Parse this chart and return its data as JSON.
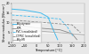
{
  "title": "",
  "xlabel": "Temperature [°C]",
  "ylabel": "Shear modulus [N/mm²]",
  "xlim": [
    -100,
    200
  ],
  "ylim": [
    0,
    20
  ],
  "xticks": [
    -100,
    -50,
    0,
    50,
    100,
    150,
    200
  ],
  "ytick_values": [
    0,
    5,
    10,
    15,
    20
  ],
  "background_color": "#e8e8e8",
  "grid_color": "#ffffff",
  "series": [
    {
      "label": "Polystyrene",
      "color": "#44bbee",
      "linewidth": 0.7,
      "linestyle": "-",
      "x": [
        -100,
        -50,
        0,
        20,
        50,
        70,
        90
      ],
      "y": [
        17.0,
        16.5,
        15.5,
        15.0,
        13.0,
        7.0,
        1.5
      ]
    },
    {
      "label": "PUR",
      "color": "#888888",
      "linewidth": 0.6,
      "linestyle": "-",
      "x": [
        -100,
        -50,
        0,
        50,
        100,
        150,
        170
      ],
      "y": [
        9.0,
        8.5,
        7.5,
        7.0,
        6.5,
        4.5,
        1.5
      ]
    },
    {
      "label": "PVC (crosslinked)",
      "color": "#44bbee",
      "linewidth": 0.6,
      "linestyle": "--",
      "x": [
        -100,
        -50,
        0,
        50,
        100,
        130,
        155
      ],
      "y": [
        14.0,
        13.5,
        13.0,
        12.5,
        12.0,
        8.0,
        3.0
      ]
    },
    {
      "label": "CTPVC (crosslinked)",
      "color": "#888888",
      "linewidth": 0.6,
      "linestyle": "--",
      "x": [
        -100,
        -50,
        0,
        50,
        100,
        150,
        185
      ],
      "y": [
        11.5,
        11.0,
        10.5,
        10.0,
        9.5,
        9.0,
        5.0
      ]
    },
    {
      "label": "Poly-MI",
      "color": "#aaaaaa",
      "linewidth": 0.6,
      "linestyle": "-",
      "x": [
        -100,
        -50,
        0,
        50,
        100,
        150,
        200
      ],
      "y": [
        7.0,
        6.5,
        6.0,
        5.5,
        5.0,
        4.5,
        4.0
      ]
    }
  ]
}
